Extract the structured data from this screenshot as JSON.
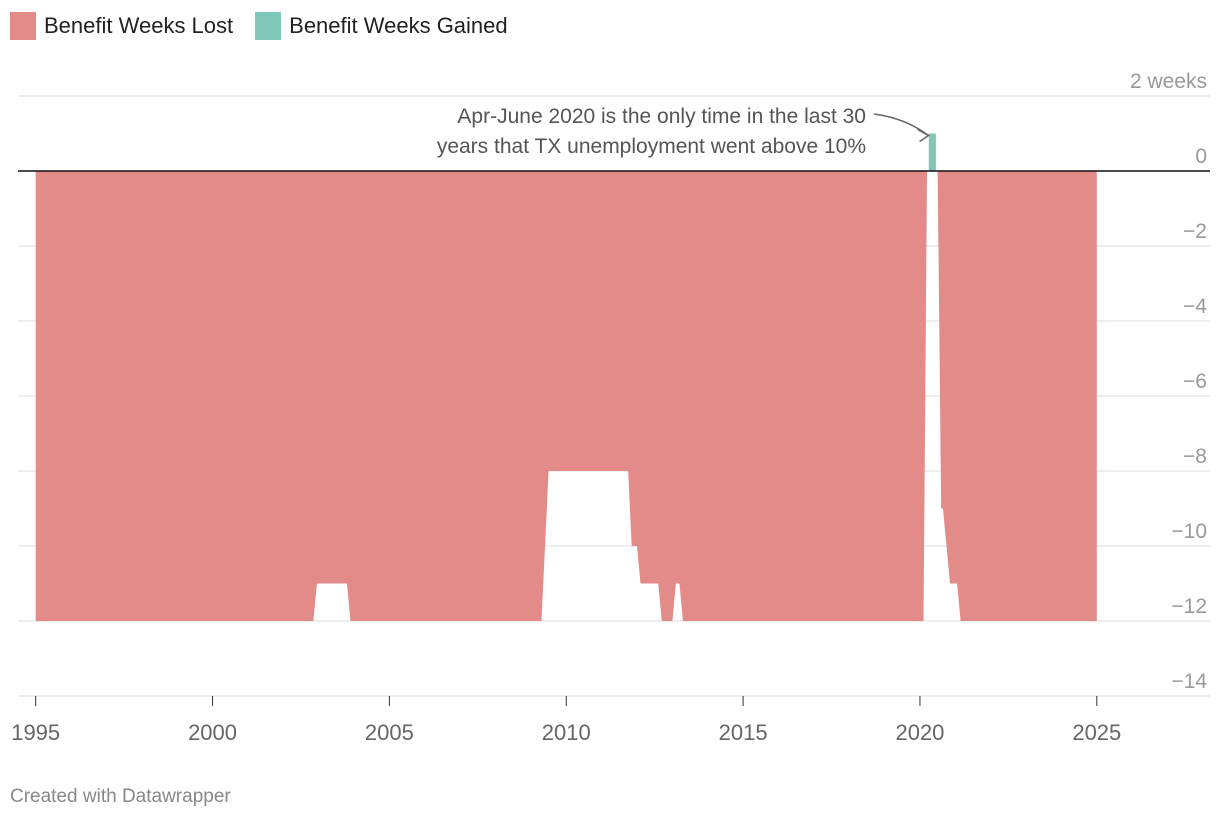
{
  "legend": {
    "lost_label": "Benefit Weeks Lost",
    "gained_label": "Benefit Weeks Gained"
  },
  "colors": {
    "lost": "#e28b89",
    "gained": "#7fc8b9",
    "grid": "#dddddd",
    "zero_line": "#111111",
    "tick_text": "#999999",
    "annotation_text": "#555555"
  },
  "footer": "Created with Datawrapper",
  "chart_data": {
    "type": "area",
    "title": "",
    "xlabel": "",
    "ylabel": "weeks",
    "xlim": [
      1994.5,
      2028.2
    ],
    "ylim": [
      -14,
      2
    ],
    "x_ticks": [
      1995,
      2000,
      2005,
      2010,
      2015,
      2020,
      2025
    ],
    "y_ticks": [
      2,
      0,
      -2,
      -4,
      -6,
      -8,
      -10,
      -12,
      -14
    ],
    "y_tick_labels": [
      "2 weeks",
      "0",
      "−2",
      "−4",
      "−6",
      "−8",
      "−10",
      "−12",
      "−14"
    ],
    "series": [
      {
        "name": "Benefit Weeks Lost",
        "points": [
          [
            1995.0,
            -12
          ],
          [
            2002.85,
            -12
          ],
          [
            2002.95,
            -11
          ],
          [
            2003.8,
            -11
          ],
          [
            2003.9,
            -12
          ],
          [
            2009.3,
            -12
          ],
          [
            2009.5,
            -8
          ],
          [
            2011.75,
            -8
          ],
          [
            2011.85,
            -10
          ],
          [
            2012.0,
            -10
          ],
          [
            2012.1,
            -11
          ],
          [
            2012.6,
            -11
          ],
          [
            2012.7,
            -12
          ],
          [
            2013.0,
            -12
          ],
          [
            2013.1,
            -11
          ],
          [
            2013.2,
            -11
          ],
          [
            2013.3,
            -12
          ],
          [
            2020.1,
            -12
          ],
          [
            2020.2,
            0
          ],
          [
            2020.25,
            0
          ],
          [
            2020.45,
            0
          ],
          [
            2020.5,
            0
          ],
          [
            2020.6,
            -9
          ],
          [
            2020.65,
            -9
          ],
          [
            2020.85,
            -11
          ],
          [
            2021.05,
            -11
          ],
          [
            2021.15,
            -12
          ],
          [
            2025.0,
            -12
          ]
        ]
      },
      {
        "name": "Benefit Weeks Gained",
        "points": [
          [
            2020.25,
            1
          ],
          [
            2020.45,
            1
          ]
        ]
      }
    ],
    "annotation": {
      "line1": "Apr-June 2020 is the only time in the last 30",
      "line2": "years that TX unemployment went above 10%",
      "target": [
        2020.3,
        1
      ]
    }
  }
}
